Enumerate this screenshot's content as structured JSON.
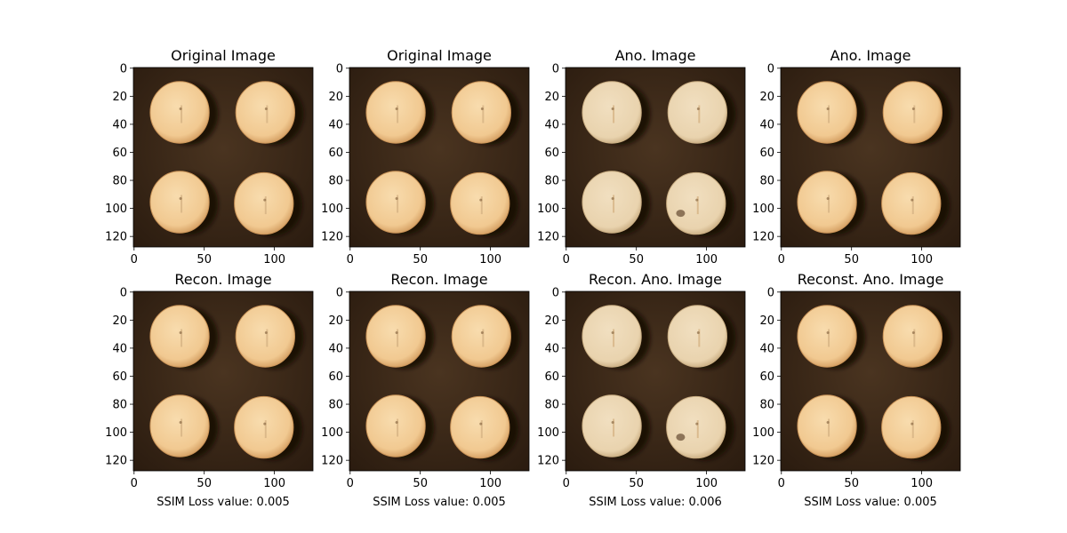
{
  "figure": {
    "panels": [
      {
        "title": "Original Image",
        "defect": "none"
      },
      {
        "title": "Original Image",
        "defect": "none"
      },
      {
        "title": "Ano. Image",
        "defect": "pale-tablets-with-blemish"
      },
      {
        "title": "Ano. Image",
        "defect": "none"
      },
      {
        "title": "Recon. Image",
        "defect": "none"
      },
      {
        "title": "Recon. Image",
        "defect": "none"
      },
      {
        "title": "Recon. Ano. Image",
        "defect": "pale-tablets-with-blemish"
      },
      {
        "title": "Reconst. Ano. Image",
        "defect": "none"
      }
    ],
    "x_ticks": [
      "0",
      "50",
      "100"
    ],
    "y_ticks": [
      "0",
      "20",
      "40",
      "60",
      "80",
      "100",
      "120"
    ],
    "captions": [
      "SSIM Loss value: 0.005",
      "SSIM Loss value: 0.005",
      "SSIM Loss value: 0.006",
      "SSIM Loss value: 0.005"
    ],
    "colors": {
      "background_dark": "#2e1f12",
      "background_light": "#4a3420",
      "tablet_light": "#f3cf9c",
      "tablet_edge": "#d9a86e",
      "tablet_pale": "#eed8b4",
      "shadow": "#120b05"
    }
  }
}
